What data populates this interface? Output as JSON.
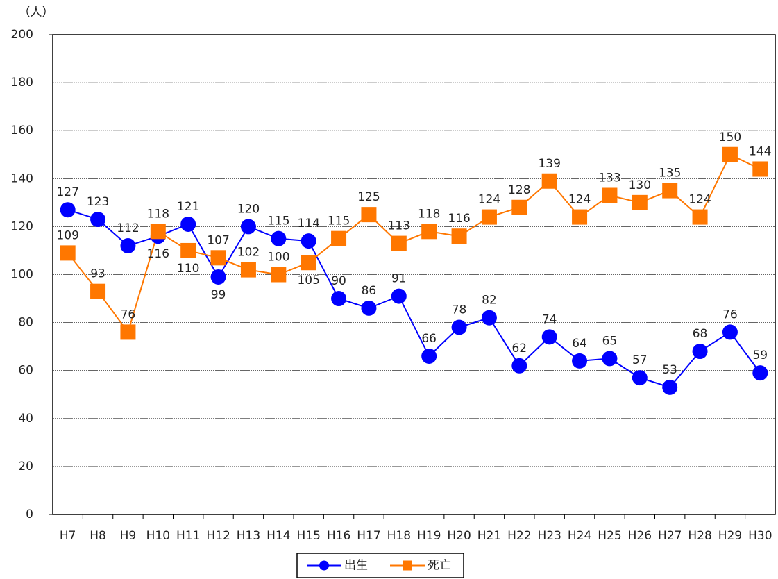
{
  "chart_data": {
    "type": "line",
    "y_label": "（人）",
    "categories": [
      "H7",
      "H8",
      "H9",
      "H10",
      "H11",
      "H12",
      "H13",
      "H14",
      "H15",
      "H16",
      "H17",
      "H18",
      "H19",
      "H20",
      "H21",
      "H22",
      "H23",
      "H24",
      "H25",
      "H26",
      "H27",
      "H28",
      "H29",
      "H30"
    ],
    "series": [
      {
        "name": "出生",
        "color": "#0000ff",
        "marker": "circle",
        "values": [
          127,
          123,
          112,
          116,
          121,
          99,
          120,
          115,
          114,
          90,
          86,
          91,
          66,
          78,
          82,
          62,
          74,
          64,
          65,
          57,
          53,
          68,
          76,
          59
        ]
      },
      {
        "name": "死亡",
        "color": "#ff7700",
        "marker": "square",
        "values": [
          109,
          93,
          76,
          118,
          110,
          107,
          102,
          100,
          105,
          115,
          125,
          113,
          118,
          116,
          124,
          128,
          139,
          124,
          133,
          130,
          135,
          124,
          150,
          144
        ]
      }
    ],
    "ylim": [
      0,
      200
    ],
    "yticks": [
      0,
      20,
      40,
      60,
      80,
      100,
      120,
      140,
      160,
      180,
      200
    ],
    "grid": true
  }
}
